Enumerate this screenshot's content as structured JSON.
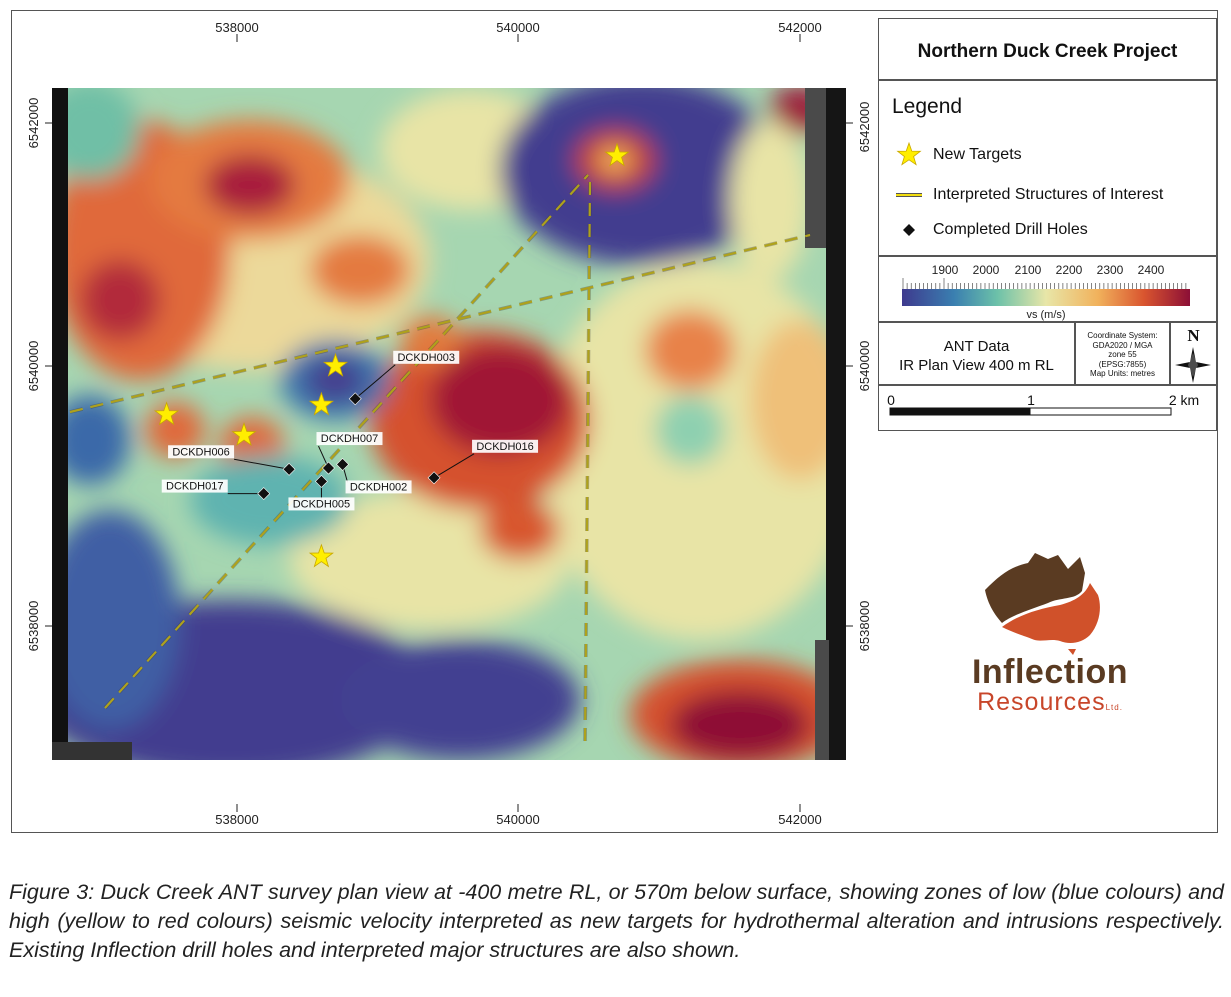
{
  "map": {
    "axis_labels": {
      "top": [
        "538000",
        "540000",
        "542000"
      ],
      "bottom": [
        "538000",
        "540000",
        "542000"
      ],
      "left": [
        "6542000",
        "6540000",
        "6538000"
      ],
      "right": [
        "6542000",
        "6540000",
        "6538000"
      ]
    },
    "new_targets": [
      {
        "e": 540700,
        "n": 6541730
      },
      {
        "e": 538700,
        "n": 6540000
      },
      {
        "e": 538600,
        "n": 6539680
      },
      {
        "e": 537500,
        "n": 6539600
      },
      {
        "e": 538050,
        "n": 6539430
      },
      {
        "e": 538600,
        "n": 6538430
      }
    ],
    "drill_holes": [
      {
        "id": "DCKDH003",
        "label": "DCKDH003",
        "e": 538840,
        "n": 6539730
      },
      {
        "id": "DCKDH007",
        "label": "DCKDH007",
        "e": 538650,
        "n": 6539160
      },
      {
        "id": "DCKDH016",
        "label": "DCKDH016",
        "e": 539400,
        "n": 6539080
      },
      {
        "id": "DCKDH006",
        "label": "DCKDH006",
        "e": 538370,
        "n": 6539150
      },
      {
        "id": "DCKDH002",
        "label": "DCKDH002",
        "e": 538750,
        "n": 6539190
      },
      {
        "id": "DCKDH017",
        "label": "DCKDH017",
        "e": 538190,
        "n": 6538950
      },
      {
        "id": "DCKDH005",
        "label": "DCKDH005",
        "e": 538600,
        "n": 6539050
      }
    ]
  },
  "header": {
    "project_title": "Northern Duck Creek Project"
  },
  "legend": {
    "title": "Legend",
    "items": [
      {
        "label": "New Targets",
        "symbol": "star-icon"
      },
      {
        "label": "Interpreted Structures of Interest",
        "symbol": "dashed-line"
      },
      {
        "label": "Completed Drill Holes",
        "symbol": "diamond-icon"
      }
    ]
  },
  "color_scale": {
    "ticks": [
      "1900",
      "2000",
      "2100",
      "2200",
      "2300",
      "2400"
    ],
    "unit_label": "vs (m/s)"
  },
  "info": {
    "ant_line1": "ANT Data",
    "ant_line2": "IR Plan View 400 m RL",
    "coord_lines": [
      "Coordinate System:",
      "GDA2020 / MGA",
      "zone 55",
      "(EPSG:7855)",
      "Map Units: metres"
    ],
    "north_label": "N"
  },
  "scale_bar": {
    "labels": [
      "0",
      "1",
      "2 km"
    ]
  },
  "logo": {
    "line1": "Inflection",
    "line2": "Resources",
    "suffix": "Ltd."
  },
  "caption": "Figure 3:  Duck Creek ANT survey plan view at -400 metre RL, or 570m below surface, showing zones of low (blue colours) and high (yellow to red colours) seismic velocity interpreted as new targets for hydrothermal alteration and intrusions respectively.  Existing Inflection drill holes and interpreted major structures are also shown.",
  "colors": {
    "low": "#403c8f",
    "mid": "#e8e4a6",
    "high": "#8e0f35",
    "structure": "#f2dd10",
    "target": "#ffee00"
  }
}
